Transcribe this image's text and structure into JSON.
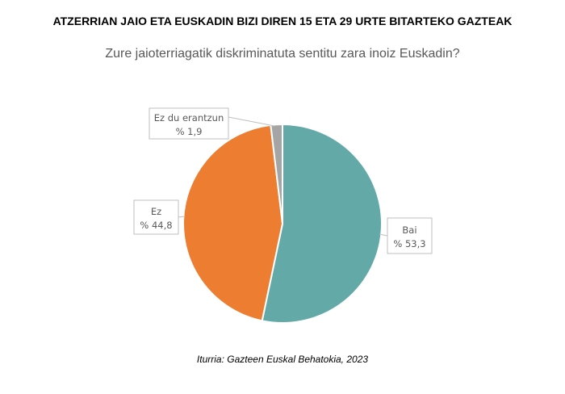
{
  "chart_data": {
    "type": "pie",
    "title": "ATZERRIAN JAIO ETA EUSKADIN BIZI DIREN 15 ETA 29 URTE BITARTEKO GAZTEAK",
    "subtitle": "Zure jaioterriagatik diskriminatuta sentitu zara inoiz Euskadin?",
    "source": "Iturria: Gazteen Euskal Behatokia, 2023",
    "slices": [
      {
        "label": "Bai",
        "value": 53.3,
        "value_label": "% 53,3",
        "color": "#63A9A8"
      },
      {
        "label": "Ez",
        "value": 44.8,
        "value_label": "% 44,8",
        "color": "#ED7D31"
      },
      {
        "label": "Ez du erantzun",
        "value": 1.9,
        "value_label": "% 1,9",
        "color": "#A5A5A5"
      }
    ]
  }
}
